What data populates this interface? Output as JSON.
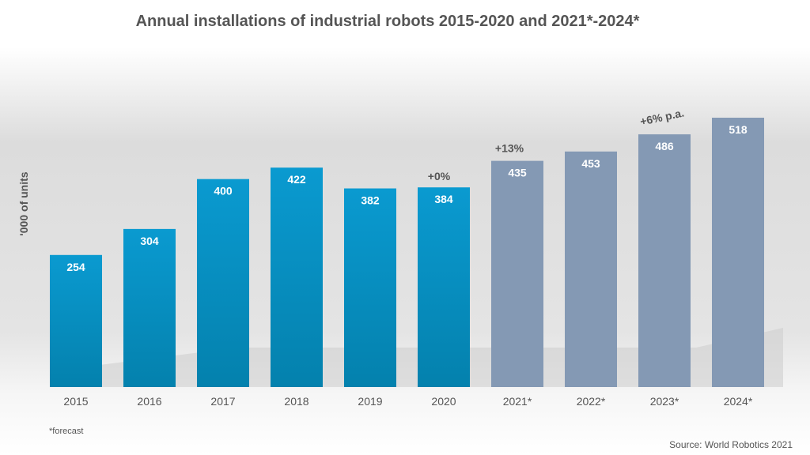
{
  "chart_data": {
    "type": "bar",
    "title": "Annual installations of industrial robots 2015-2020 and 2021*-2024*",
    "ylabel": "'000 of units",
    "xlabel": "",
    "ylim": [
      0,
      518
    ],
    "grid": false,
    "categories": [
      "2015",
      "2016",
      "2017",
      "2018",
      "2019",
      "2020",
      "2021*",
      "2022*",
      "2023*",
      "2024*"
    ],
    "values": [
      254,
      304,
      400,
      422,
      382,
      384,
      435,
      453,
      486,
      518
    ],
    "forecast": [
      false,
      false,
      false,
      false,
      false,
      false,
      true,
      true,
      true,
      true
    ],
    "colors": {
      "actual": "#0a9ad0",
      "actual_bottom": "#0481ad",
      "forecast": "#8499b4"
    },
    "annotations": [
      {
        "text": "+0%",
        "category": "2020"
      },
      {
        "text": "+13%",
        "category": "2021*"
      },
      {
        "text": "+6% p.a.",
        "category": "2023*"
      }
    ],
    "footnote": "*forecast",
    "source": "Source: World Robotics 2021"
  }
}
